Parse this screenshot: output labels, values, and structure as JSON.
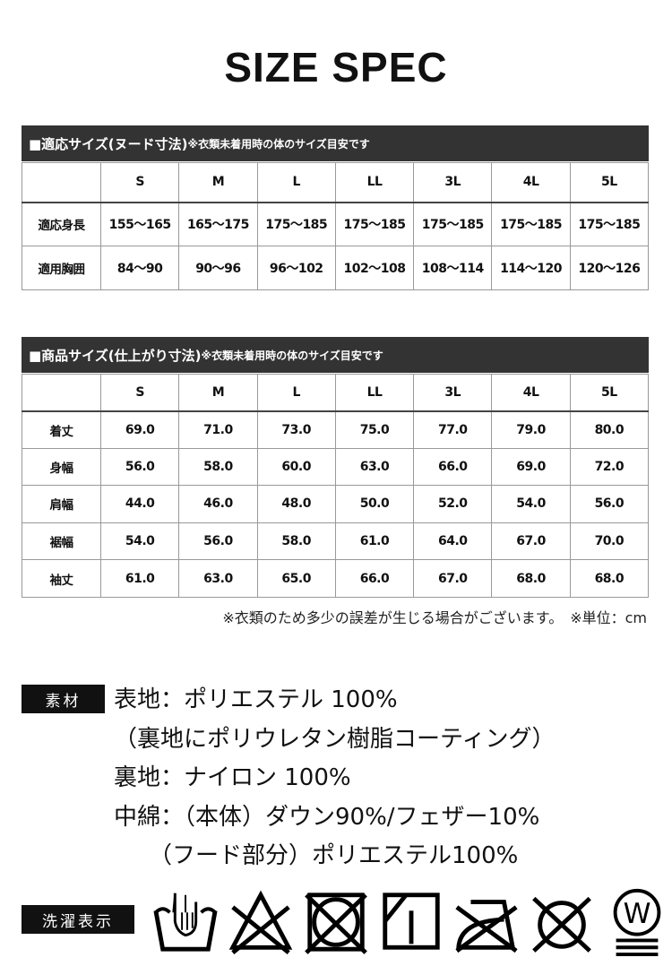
{
  "title": "SIZE SPEC",
  "table1": {
    "heading": "■適応サイズ(ヌード寸法)",
    "heading_note": "※衣類未着用時の体のサイズ目安です",
    "sizes": [
      "S",
      "M",
      "L",
      "LL",
      "3L",
      "4L",
      "5L"
    ],
    "rows": [
      {
        "label": "適応身長",
        "values": [
          "155〜165",
          "165〜175",
          "175〜185",
          "175〜185",
          "175〜185",
          "175〜185",
          "175〜185"
        ]
      },
      {
        "label": "適用胸囲",
        "values": [
          "84〜90",
          "90〜96",
          "96〜102",
          "102〜108",
          "108〜114",
          "114〜120",
          "120〜126"
        ]
      }
    ]
  },
  "table2": {
    "heading": "■商品サイズ(仕上がり寸法)",
    "heading_note": "※衣類未着用時の体のサイズ目安です",
    "sizes": [
      "S",
      "M",
      "L",
      "LL",
      "3L",
      "4L",
      "5L"
    ],
    "rows": [
      {
        "label": "着丈",
        "values": [
          "69.0",
          "71.0",
          "73.0",
          "75.0",
          "77.0",
          "79.0",
          "80.0"
        ]
      },
      {
        "label": "身幅",
        "values": [
          "56.0",
          "58.0",
          "60.0",
          "63.0",
          "66.0",
          "69.0",
          "72.0"
        ]
      },
      {
        "label": "肩幅",
        "values": [
          "44.0",
          "46.0",
          "48.0",
          "50.0",
          "52.0",
          "54.0",
          "56.0"
        ]
      },
      {
        "label": "裾幅",
        "values": [
          "54.0",
          "56.0",
          "58.0",
          "61.0",
          "64.0",
          "67.0",
          "70.0"
        ]
      },
      {
        "label": "袖丈",
        "values": [
          "61.0",
          "63.0",
          "65.0",
          "66.0",
          "67.0",
          "68.0",
          "68.0"
        ]
      }
    ]
  },
  "note": "※衣類のため多少の誤差が生じる場合がございます。　※単位：cm",
  "material": {
    "label": "素材",
    "lines": [
      "表地：ポリエステル 100%",
      "（裏地にポリウレタン樹脂コーティング）",
      "裏地：ナイロン 100%",
      "中綿：（本体）ダウン90%/フェザー10%",
      "　　（フード部分）ポリエステル100%"
    ]
  },
  "wash": {
    "label": "洗濯表示",
    "icons": [
      "hand-wash-icon",
      "no-bleach-icon",
      "no-tumble-dry-icon",
      "line-dry-shade-icon",
      "no-iron-icon",
      "no-dry-clean-icon",
      "wet-clean-very-gentle-icon"
    ],
    "wet_clean_letter": "W"
  }
}
